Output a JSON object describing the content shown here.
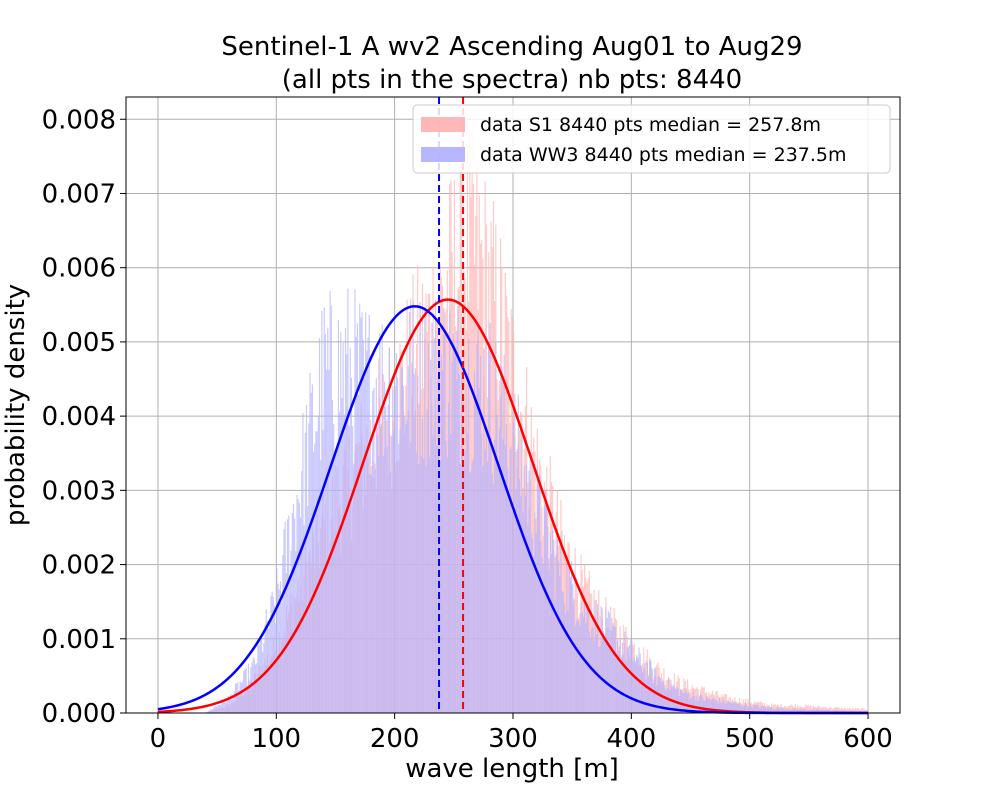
{
  "chart_data": {
    "type": "histogram",
    "title_line1": "Sentinel-1 A wv2 Ascending Aug01 to Aug29",
    "title_line2": "(all pts in the spectra) nb pts: 8440",
    "xlabel": "wave length [m]",
    "ylabel": "probability density",
    "xlim": [
      -27,
      627
    ],
    "ylim": [
      0.0,
      0.0083
    ],
    "xticks": [
      0,
      100,
      200,
      300,
      400,
      500,
      600
    ],
    "xtick_labels": [
      "0",
      "100",
      "200",
      "300",
      "400",
      "500",
      "600"
    ],
    "yticks": [
      0.0,
      0.001,
      0.002,
      0.003,
      0.004,
      0.005,
      0.006,
      0.007,
      0.008
    ],
    "ytick_labels": [
      "0.000",
      "0.001",
      "0.002",
      "0.003",
      "0.004",
      "0.005",
      "0.006",
      "0.007",
      "0.008"
    ],
    "grid": true,
    "legend_position": "top-right",
    "bin_width": 1,
    "series": [
      {
        "name": "data S1 8440 pts median = 257.8m",
        "color": "#ff0000",
        "bar_color": "#ffb3b3",
        "median": 257.8,
        "fit": {
          "mean": 245,
          "std": 71.5,
          "peak": 0.00557
        },
        "density_profile": {
          "x": [
            0,
            40,
            60,
            80,
            100,
            120,
            140,
            160,
            180,
            200,
            220,
            240,
            250,
            260,
            270,
            280,
            290,
            300,
            320,
            340,
            360,
            380,
            400,
            420,
            440,
            460,
            480,
            500,
            520,
            540,
            560,
            580,
            600
          ],
          "y": [
            0.0,
            0.0,
            0.0001,
            0.0004,
            0.0009,
            0.0017,
            0.0025,
            0.0031,
            0.0036,
            0.0042,
            0.0048,
            0.0055,
            0.0059,
            0.0063,
            0.0061,
            0.0057,
            0.0052,
            0.0045,
            0.0033,
            0.0023,
            0.0016,
            0.0012,
            0.0009,
            0.0006,
            0.0004,
            0.0003,
            0.0002,
            0.00015,
            0.0001,
            0.0001,
            8e-05,
            6e-05,
            5e-05
          ]
        }
      },
      {
        "name": "data WW3 8440 pts median = 237.5m",
        "color": "#0000ff",
        "bar_color": "#b3b3ff",
        "median": 237.5,
        "fit": {
          "mean": 217,
          "std": 71,
          "peak": 0.00548
        },
        "density_profile": {
          "x": [
            0,
            40,
            60,
            80,
            100,
            120,
            140,
            160,
            180,
            200,
            220,
            240,
            260,
            280,
            300,
            320,
            340,
            360,
            380,
            400,
            420,
            440,
            460,
            480,
            500,
            520,
            540,
            560,
            580,
            600
          ],
          "y": [
            0.0,
            0.0,
            0.0002,
            0.0006,
            0.0015,
            0.0031,
            0.0045,
            0.0046,
            0.0044,
            0.0044,
            0.0045,
            0.0046,
            0.0045,
            0.0043,
            0.0036,
            0.0027,
            0.0019,
            0.0014,
            0.0011,
            0.0008,
            0.0005,
            0.0003,
            0.0002,
            0.00015,
            0.0001,
            7e-05,
            5e-05,
            4e-05,
            3e-05,
            2e-05
          ]
        }
      }
    ]
  }
}
